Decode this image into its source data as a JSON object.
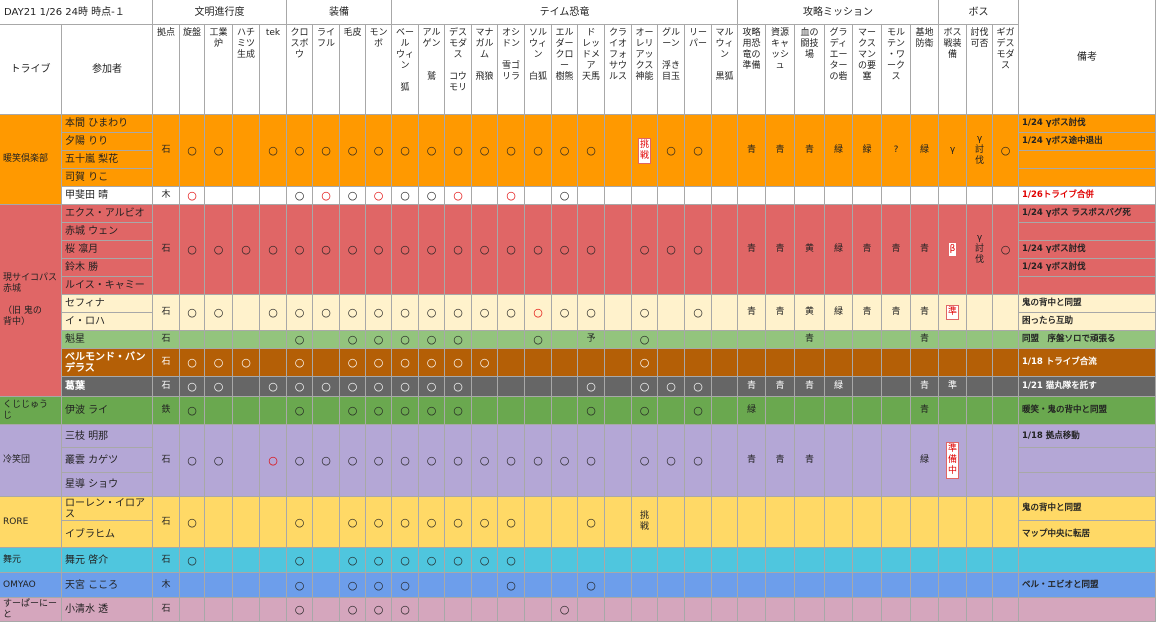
{
  "title": "DAY21 1/26  24時 時点-１",
  "tribe_header": "トライブ",
  "member_header": "参加者",
  "notes_header": "備考",
  "column_groups": [
    {
      "label": "文明進行度",
      "columns": [
        "拠点",
        "旋盤",
        "工業\n炉",
        "ハチ\nミツ\n生成",
        "tek"
      ]
    },
    {
      "label": "装備",
      "columns": [
        "クロ\nスボ\nウ",
        "ライ\nフル",
        "毛皮",
        "モン\nボ"
      ]
    },
    {
      "label": "テイム恐竜",
      "columns": [
        "ベー\nル\nウィ\nン\n\n狐",
        "アル\nゲン\n\n\n鷲",
        "デス\nモダ\nス\n\nコウ\nモリ",
        "マナ\nガル\nム\n\n飛狼",
        "オシ\nドン\n\n雪ゴ\nリラ",
        "ソル\nウィ\nン\n\n白狐",
        "エル\nダー\nクロ\nー\n樹熊",
        "ド\nレッ\nドメ\nア\n天馬",
        "クラ\nイオ\nフォ\nサウ\nルス",
        "オー\nレリ\nアッ\nクス\n神能",
        "グル\nーン\n\n浮き\n目玉",
        "リー\nパー",
        "マル\nウィ\nン\n\n黒狐"
      ]
    },
    {
      "label": "攻略ミッション",
      "columns": [
        "攻略\n用恐\n竜の\n準備",
        "資源\nキャ\nッシ\nュ",
        "血の\n闘技\n場",
        "グラ\nディ\nエー\nター\nの砦",
        "マー\nクス\nマン\nの要\n塞",
        "モル\nテン\n・ワ\nーク\nス",
        "基地\n防衛"
      ]
    },
    {
      "label": "ボス",
      "columns": [
        "ボス\n戦装\n備",
        "討伐\n可否",
        "ギガ\nデス\nモダ\nス"
      ]
    }
  ],
  "tribes": [
    {
      "name": "暖笑倶楽部",
      "color": "#ff9900",
      "blocks": [
        {
          "color": "#ff9900",
          "members": [
            "本間 ひまわり",
            "夕陽 りり",
            "五十嵐 梨花",
            "司賀 りこ"
          ],
          "cells": [
            "石",
            "○",
            "○",
            null,
            "○",
            "○",
            "○",
            "○",
            "○",
            "○",
            "○",
            "○",
            "○",
            "○",
            "○",
            "○",
            "○",
            null,
            "挑\n戦",
            "○",
            "○",
            null,
            "青",
            "青",
            "青",
            "緑",
            "緑",
            "?",
            "緑",
            "γ",
            "γ\n討\n伐",
            "○"
          ],
          "red_cells": [
            18
          ],
          "notes": [
            "1/24 γボス討伐",
            "1/24 γボス途中退出",
            null,
            null
          ]
        },
        {
          "color": "#ffffff",
          "note_color": "#e00000",
          "members": [
            "甲斐田 晴"
          ],
          "cells": [
            "木",
            "○",
            null,
            null,
            null,
            "○",
            "○",
            "○",
            "○",
            "○",
            "○",
            "○",
            null,
            "○",
            null,
            "○",
            null,
            null,
            null,
            null,
            null,
            null,
            null,
            null,
            null,
            null,
            null,
            null,
            null,
            null,
            null,
            null
          ],
          "red_cells": [
            1,
            6,
            8,
            11,
            13
          ],
          "notes": [
            "1/26トライブ合併"
          ]
        }
      ]
    },
    {
      "name": "現サイコパス赤城\n\n（旧 鬼の\n背中）",
      "color": "#e06666",
      "blocks": [
        {
          "color": "#e06666",
          "members": [
            "エクス・アルビオ",
            "赤城 ウェン",
            "桜 凛月",
            "鈴木 勝",
            "ルイス・キャミー"
          ],
          "cells": [
            "石",
            "○",
            "○",
            "○",
            "○",
            "○",
            "○",
            "○",
            "○",
            "○",
            "○",
            "○",
            "○",
            "○",
            "○",
            "○",
            "○",
            null,
            "○",
            "○",
            "○",
            null,
            "青",
            "青",
            "黄",
            "緑",
            "青",
            "青",
            "青",
            "β",
            "γ\n討\n伐",
            "○"
          ],
          "red_cells": [
            29
          ],
          "notes": [
            "1/24 γボス ラスボスバグ死",
            null,
            "1/24 γボス討伐",
            "1/24 γボス討伐",
            null
          ]
        },
        {
          "color": "#fff2cc",
          "members": [
            "セフィナ",
            "イ・ロハ"
          ],
          "cells": [
            "石",
            "○",
            "○",
            null,
            "○",
            "○",
            "○",
            "○",
            "○",
            "○",
            "○",
            "○",
            "○",
            "○",
            "○",
            "○",
            "○",
            null,
            "○",
            null,
            "○",
            null,
            "青",
            "青",
            "黄",
            "緑",
            "青",
            "青",
            "青",
            "準",
            null,
            null
          ],
          "red_cells": [
            14,
            29
          ],
          "notes": [
            "鬼の背中と同盟",
            "困ったら互助"
          ]
        },
        {
          "color": "#93c47d",
          "members": [
            "魁星"
          ],
          "cells": [
            "石",
            null,
            null,
            null,
            null,
            "○",
            null,
            "○",
            "○",
            "○",
            "○",
            "○",
            null,
            null,
            "○",
            null,
            "予",
            null,
            "○",
            null,
            null,
            null,
            null,
            null,
            "青",
            null,
            null,
            null,
            "青",
            null,
            null,
            null
          ],
          "notes": [
            "同盟　序盤ソロで頑張る"
          ]
        },
        {
          "color": "#b45f06",
          "text_color": "#ffffff",
          "members": [
            "ベルモンド・バンデラス"
          ],
          "cells": [
            "石",
            "○",
            "○",
            "○",
            null,
            "○",
            null,
            "○",
            "○",
            "○",
            "○",
            "○",
            "○",
            null,
            null,
            null,
            null,
            null,
            "○",
            null,
            null,
            null,
            null,
            null,
            null,
            null,
            null,
            null,
            null,
            null,
            null,
            null
          ],
          "notes": [
            "1/18 トライブ合流"
          ]
        },
        {
          "color": "#666666",
          "text_color": "#ffffff",
          "members": [
            "葛葉"
          ],
          "cells": [
            "石",
            "○",
            "○",
            null,
            "○",
            "○",
            "○",
            "○",
            "○",
            "○",
            "○",
            "○",
            null,
            null,
            null,
            null,
            "○",
            null,
            "○",
            "○",
            "○",
            null,
            "青",
            "青",
            "青",
            "緑",
            null,
            null,
            "青",
            "準",
            null,
            null
          ],
          "notes": [
            "1/21 猫丸隊を託す"
          ]
        }
      ]
    },
    {
      "name": "くじじゅう\nじ",
      "color": "#6aa84f",
      "blocks": [
        {
          "color": "#6aa84f",
          "members": [
            "伊波 ライ"
          ],
          "cells": [
            "鉄",
            "○",
            null,
            null,
            null,
            "○",
            null,
            "○",
            "○",
            "○",
            "○",
            "○",
            null,
            null,
            null,
            null,
            "○",
            null,
            "○",
            null,
            "○",
            null,
            "緑",
            null,
            null,
            null,
            null,
            null,
            "青",
            null,
            null,
            null
          ],
          "notes": [
            "暖笑・鬼の背中と同盟"
          ]
        }
      ]
    },
    {
      "name": "冷笑団",
      "color": "#b4a7d6",
      "blocks": [
        {
          "color": "#b4a7d6",
          "members": [
            "三枝 明那",
            "叢雲 カゲツ",
            "星導 ショウ"
          ],
          "cells": [
            "石",
            "○",
            "○",
            null,
            "○",
            "○",
            "○",
            "○",
            "○",
            "○",
            "○",
            "○",
            "○",
            "○",
            "○",
            "○",
            "○",
            null,
            "○",
            "○",
            "○",
            null,
            "青",
            "青",
            "青",
            null,
            null,
            null,
            "緑",
            "準\n備\n中",
            null,
            null
          ],
          "red_cells": [
            4,
            29
          ],
          "notes": [
            "1/18 拠点移動",
            null,
            null
          ]
        }
      ]
    },
    {
      "name": "RORE",
      "color": "#ffd966",
      "blocks": [
        {
          "color": "#ffd966",
          "members": [
            "ローレン・イロアス",
            "イブラヒム"
          ],
          "cells": [
            "石",
            "○",
            null,
            null,
            null,
            "○",
            null,
            "○",
            "○",
            "○",
            "○",
            "○",
            "○",
            "○",
            null,
            null,
            "○",
            null,
            "挑\n戦",
            null,
            null,
            null,
            null,
            null,
            null,
            null,
            null,
            null,
            null,
            null,
            null,
            null
          ],
          "notes": [
            "鬼の背中と同盟",
            "マップ中央に転居"
          ]
        }
      ]
    },
    {
      "name": "舞元",
      "color": "#4fc6de",
      "blocks": [
        {
          "color": "#4fc6de",
          "members": [
            "舞元 啓介"
          ],
          "cells": [
            "石",
            "○",
            null,
            null,
            null,
            "○",
            null,
            "○",
            "○",
            "○",
            "○",
            "○",
            "○",
            "○",
            null,
            null,
            null,
            null,
            null,
            null,
            null,
            null,
            null,
            null,
            null,
            null,
            null,
            null,
            null,
            null,
            null,
            null
          ],
          "notes": [
            null
          ]
        }
      ]
    },
    {
      "name": "OMYAO",
      "color": "#6d9eeb",
      "blocks": [
        {
          "color": "#6d9eeb",
          "members": [
            "天宮 こころ"
          ],
          "cells": [
            "木",
            null,
            null,
            null,
            null,
            "○",
            null,
            "○",
            "○",
            "○",
            null,
            null,
            null,
            "○",
            null,
            null,
            "○",
            null,
            null,
            null,
            null,
            null,
            null,
            null,
            null,
            null,
            null,
            null,
            null,
            null,
            null,
            null
          ],
          "notes": [
            "ベル・エビオと同盟"
          ]
        }
      ]
    },
    {
      "name": "すーぱーにー\nと",
      "color": "#d5a6bd",
      "blocks": [
        {
          "color": "#d5a6bd",
          "members": [
            "小清水 透"
          ],
          "cells": [
            "石",
            null,
            null,
            null,
            null,
            "○",
            null,
            "○",
            "○",
            "○",
            null,
            null,
            null,
            null,
            null,
            "○",
            null,
            null,
            null,
            null,
            null,
            null,
            null,
            null,
            null,
            null,
            null,
            null,
            null,
            null,
            null,
            null
          ],
          "notes": [
            null
          ]
        }
      ]
    }
  ]
}
